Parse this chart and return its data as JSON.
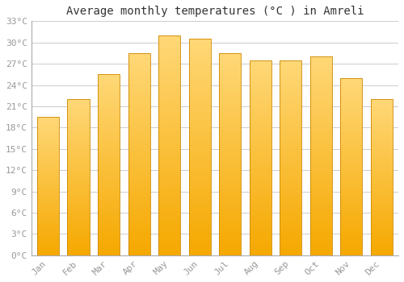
{
  "months": [
    "Jan",
    "Feb",
    "Mar",
    "Apr",
    "May",
    "Jun",
    "Jul",
    "Aug",
    "Sep",
    "Oct",
    "Nov",
    "Dec"
  ],
  "temperatures": [
    19.5,
    22.0,
    25.5,
    28.5,
    31.0,
    30.5,
    28.5,
    27.5,
    27.5,
    28.0,
    25.0,
    22.0
  ],
  "title": "Average monthly temperatures (°C ) in Amreli",
  "ylim": [
    0,
    33
  ],
  "yticks": [
    0,
    3,
    6,
    9,
    12,
    15,
    18,
    21,
    24,
    27,
    30,
    33
  ],
  "ytick_labels": [
    "0°C",
    "3°C",
    "6°C",
    "9°C",
    "12°C",
    "15°C",
    "18°C",
    "21°C",
    "24°C",
    "27°C",
    "30°C",
    "33°C"
  ],
  "background_color": "#FFFFFF",
  "grid_color": "#CCCCCC",
  "title_fontsize": 10,
  "tick_fontsize": 8,
  "font_color": "#999999",
  "bar_color_bottom": "#F5A800",
  "bar_color_top": "#FFD878",
  "bar_edge_color": "#CC8800",
  "bar_width": 0.72
}
